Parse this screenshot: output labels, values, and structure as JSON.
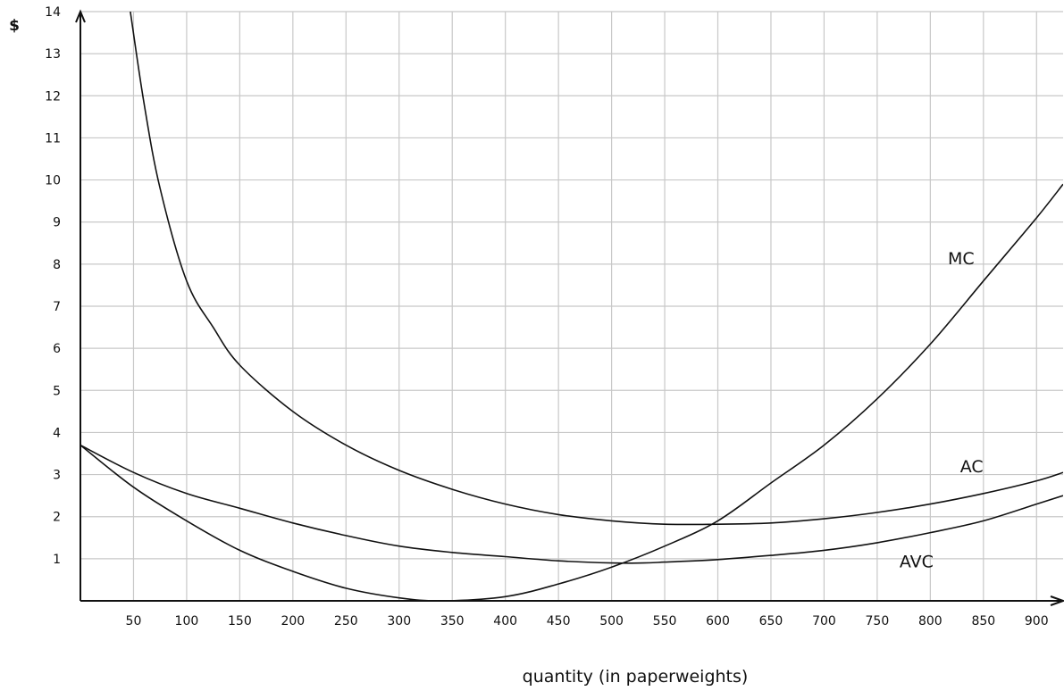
{
  "chart_data": {
    "type": "line",
    "title": "",
    "xlabel": "quantity (in paperweights)",
    "ylabel": "$",
    "xlim": [
      0,
      925
    ],
    "ylim": [
      0,
      14
    ],
    "xticks": [
      50,
      100,
      150,
      200,
      250,
      300,
      350,
      400,
      450,
      500,
      550,
      600,
      650,
      700,
      750,
      800,
      850,
      900
    ],
    "yticks": [
      1,
      2,
      3,
      4,
      5,
      6,
      7,
      8,
      9,
      10,
      11,
      12,
      13,
      14
    ],
    "grid": true,
    "series": [
      {
        "name": "MC",
        "x": [
          0,
          50,
          100,
          150,
          200,
          250,
          300,
          340,
          400,
          450,
          500,
          550,
          600,
          650,
          700,
          750,
          800,
          850,
          900,
          925
        ],
        "y": [
          3.7,
          2.7,
          1.9,
          1.2,
          0.7,
          0.3,
          0.07,
          0.0,
          0.1,
          0.4,
          0.8,
          1.3,
          1.9,
          2.8,
          3.7,
          4.8,
          6.1,
          7.6,
          9.1,
          9.9
        ]
      },
      {
        "name": "AC",
        "x": [
          47,
          60,
          75,
          100,
          125,
          150,
          200,
          250,
          300,
          350,
          400,
          450,
          500,
          550,
          600,
          650,
          700,
          750,
          800,
          850,
          900,
          925
        ],
        "y": [
          14.0,
          11.8,
          9.8,
          7.6,
          6.5,
          5.6,
          4.5,
          3.7,
          3.1,
          2.65,
          2.3,
          2.05,
          1.9,
          1.82,
          1.82,
          1.85,
          1.95,
          2.1,
          2.3,
          2.55,
          2.85,
          3.05
        ]
      },
      {
        "name": "AVC",
        "x": [
          0,
          50,
          100,
          150,
          200,
          250,
          300,
          350,
          400,
          450,
          500,
          530,
          550,
          600,
          650,
          700,
          750,
          800,
          850,
          900,
          925
        ],
        "y": [
          3.7,
          3.05,
          2.55,
          2.2,
          1.85,
          1.55,
          1.3,
          1.15,
          1.05,
          0.95,
          0.9,
          0.9,
          0.92,
          0.98,
          1.08,
          1.2,
          1.38,
          1.62,
          1.9,
          2.3,
          2.5
        ]
      }
    ],
    "annotations": [
      {
        "text": "MC",
        "x": 829,
        "y": 8.0
      },
      {
        "text": "AC",
        "x": 839,
        "y": 3.05
      },
      {
        "text": "AVC",
        "x": 787,
        "y": 0.8
      }
    ]
  }
}
